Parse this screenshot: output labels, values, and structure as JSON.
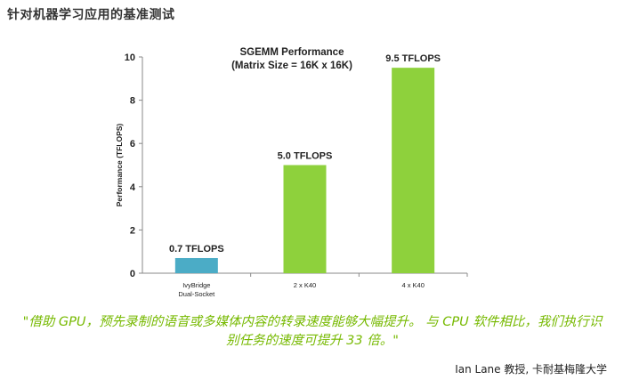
{
  "page": {
    "heading": "针对机器学习应用的基准测试",
    "quote": "\"借助 GPU，预先录制的语音或多媒体内容的转录速度能够大幅提升。 与 CPU 软件相比，我们执行识别任务的速度可提升 33 倍。\"",
    "attribution": "Ian Lane 教授, 卡耐基梅隆大学"
  },
  "chart_data": {
    "type": "bar",
    "title": "SGEMM Performance",
    "subtitle": "(Matrix Size = 16K x 16K)",
    "xlabel": "",
    "ylabel": "Performance (TFLOPS)",
    "ylim": [
      0,
      10
    ],
    "yticks": [
      0,
      2,
      4,
      6,
      8,
      10
    ],
    "grid": false,
    "categories": [
      "IvyBridge\nDual-Socket",
      "2 x K40",
      "4 x K40"
    ],
    "values": [
      0.7,
      5.0,
      9.5
    ],
    "data_labels": [
      "0.7 TFLOPS",
      "5.0 TFLOPS",
      "9.5 TFLOPS"
    ],
    "colors": [
      "#4bacc6",
      "#8ed13c",
      "#8ed13c"
    ]
  }
}
